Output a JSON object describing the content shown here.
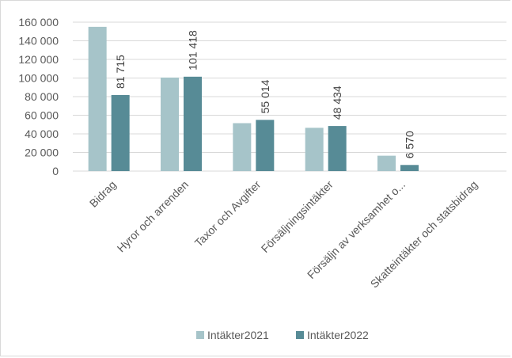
{
  "chart_data": {
    "type": "bar",
    "categories": [
      "Bidrag",
      "Hyror och arrenden",
      "Taxor och Avgifter",
      "Försäljningsintäkter",
      "Försäljn av verksamhet o...",
      "Skatteintäkter och statsbidrag"
    ],
    "series": [
      {
        "name": "Intäkter2021",
        "values": [
          155000,
          100500,
          51500,
          46500,
          16500,
          0
        ],
        "labels": []
      },
      {
        "name": "Intäkter2022",
        "values": [
          81715,
          101418,
          55014,
          48434,
          6570,
          0
        ],
        "labels": [
          "81 715",
          "101 418",
          "55 014",
          "48 434",
          "6 570",
          ""
        ]
      }
    ],
    "yticks": [
      "0",
      "20 000",
      "40 000",
      "60 000",
      "80 000",
      "100 000",
      "120 000",
      "140 000",
      "160 000"
    ],
    "ylim": [
      0,
      160000
    ],
    "grid": true,
    "legend_position": "bottom",
    "colors": {
      "Intäkter2021": "#a6c4c9",
      "Intäkter2022": "#578b96",
      "grid": "#d9d9d9"
    }
  }
}
